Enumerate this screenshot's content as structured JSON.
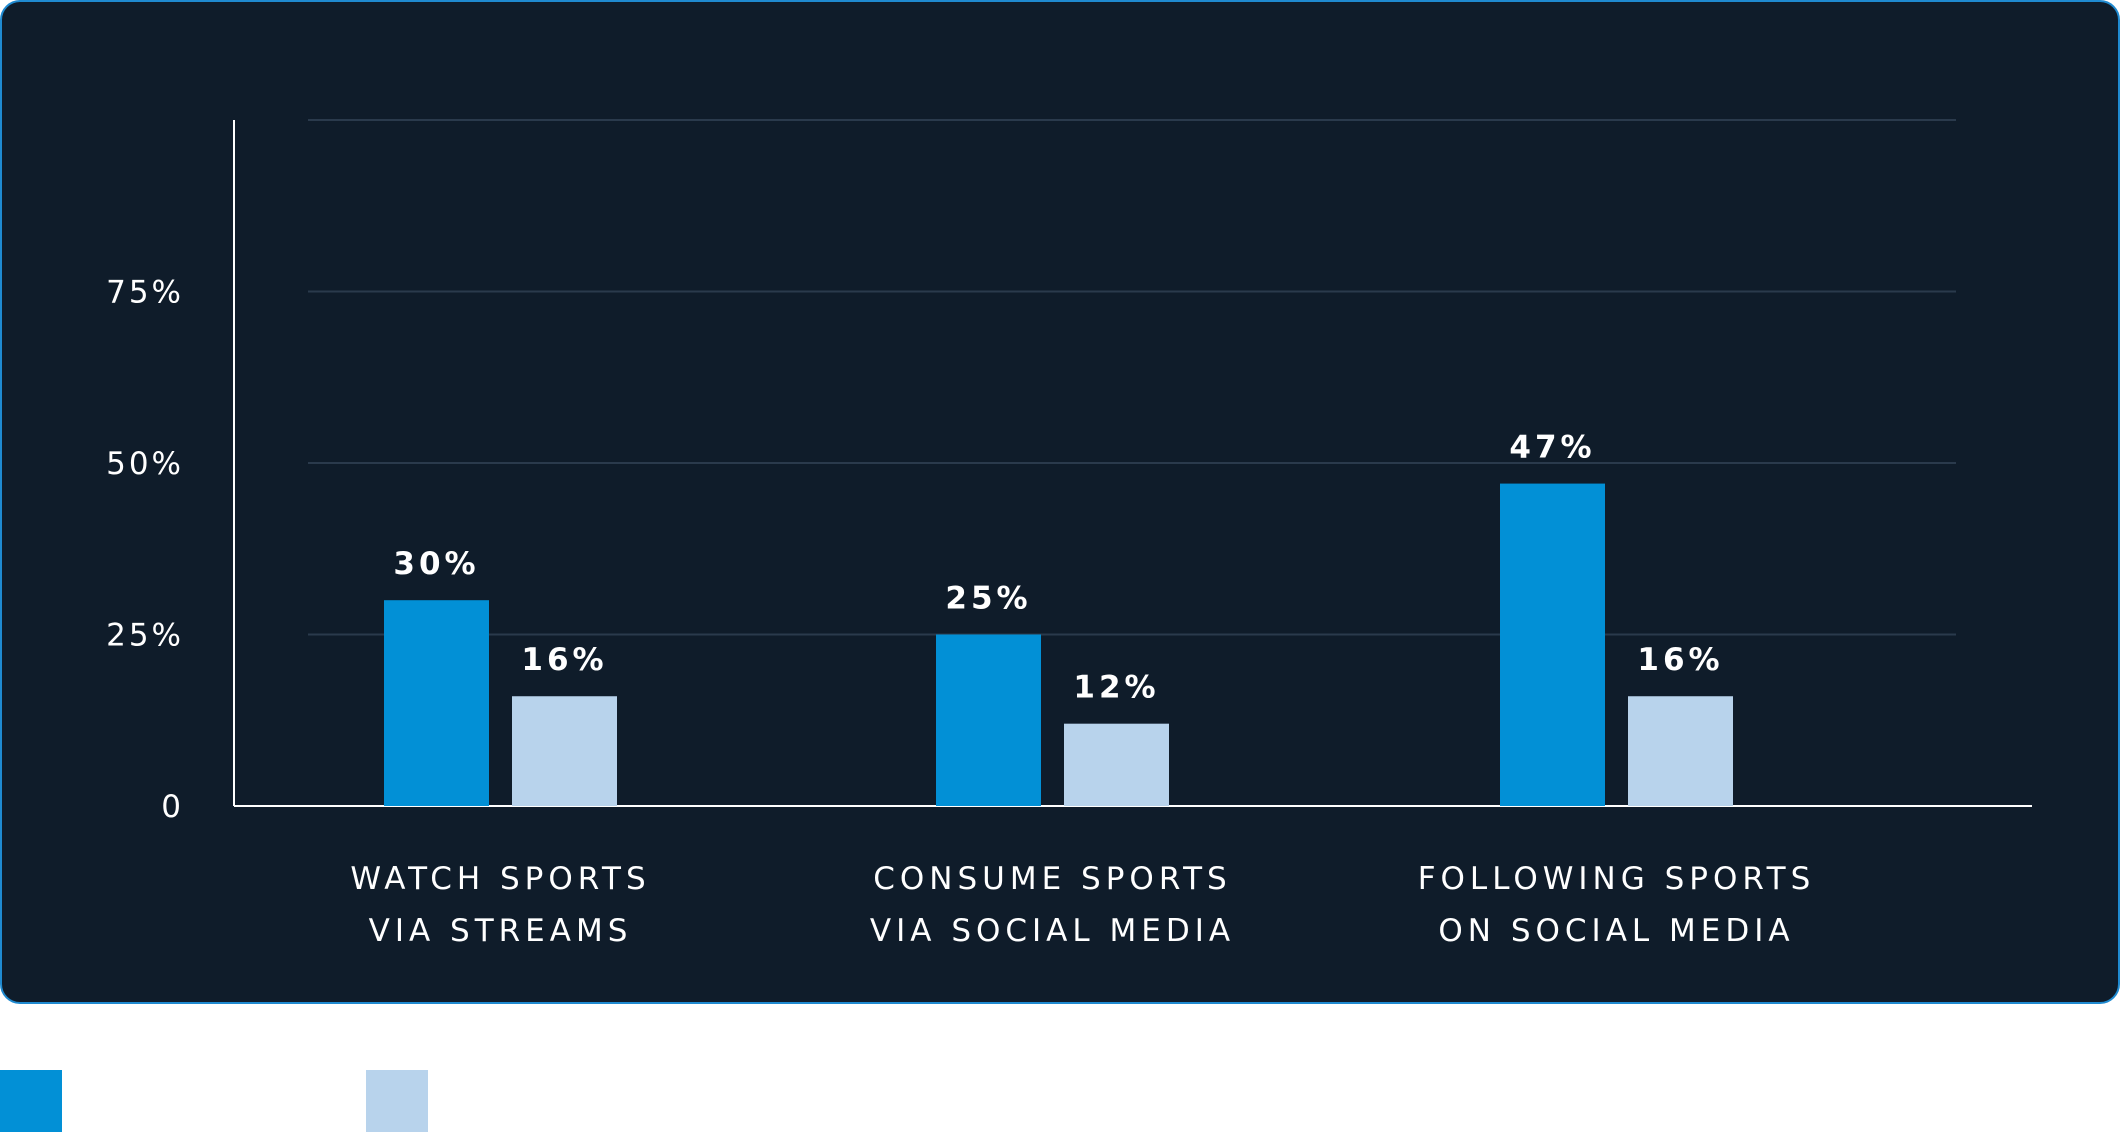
{
  "chart_data": {
    "type": "bar",
    "categories": [
      [
        "WATCH SPORTS",
        "VIA STREAMS"
      ],
      [
        "CONSUME SPORTS",
        "VIA SOCIAL MEDIA"
      ],
      [
        "FOLLOWING SPORTS",
        "ON SOCIAL MEDIA"
      ]
    ],
    "series": [
      {
        "values": [
          30,
          25,
          47
        ],
        "labels": [
          "30%",
          "25%",
          "47%"
        ],
        "color": "#0290d6"
      },
      {
        "values": [
          16,
          12,
          16
        ],
        "labels": [
          "16%",
          "12%",
          "16%"
        ],
        "color": "#b8d3ec"
      }
    ],
    "yticks": [
      {
        "value": 0,
        "label": "0"
      },
      {
        "value": 25,
        "label": "25%"
      },
      {
        "value": 50,
        "label": "50%"
      },
      {
        "value": 75,
        "label": "75%"
      }
    ],
    "ylim": [
      0,
      100
    ],
    "grid": true,
    "legend": "bottom-left"
  }
}
